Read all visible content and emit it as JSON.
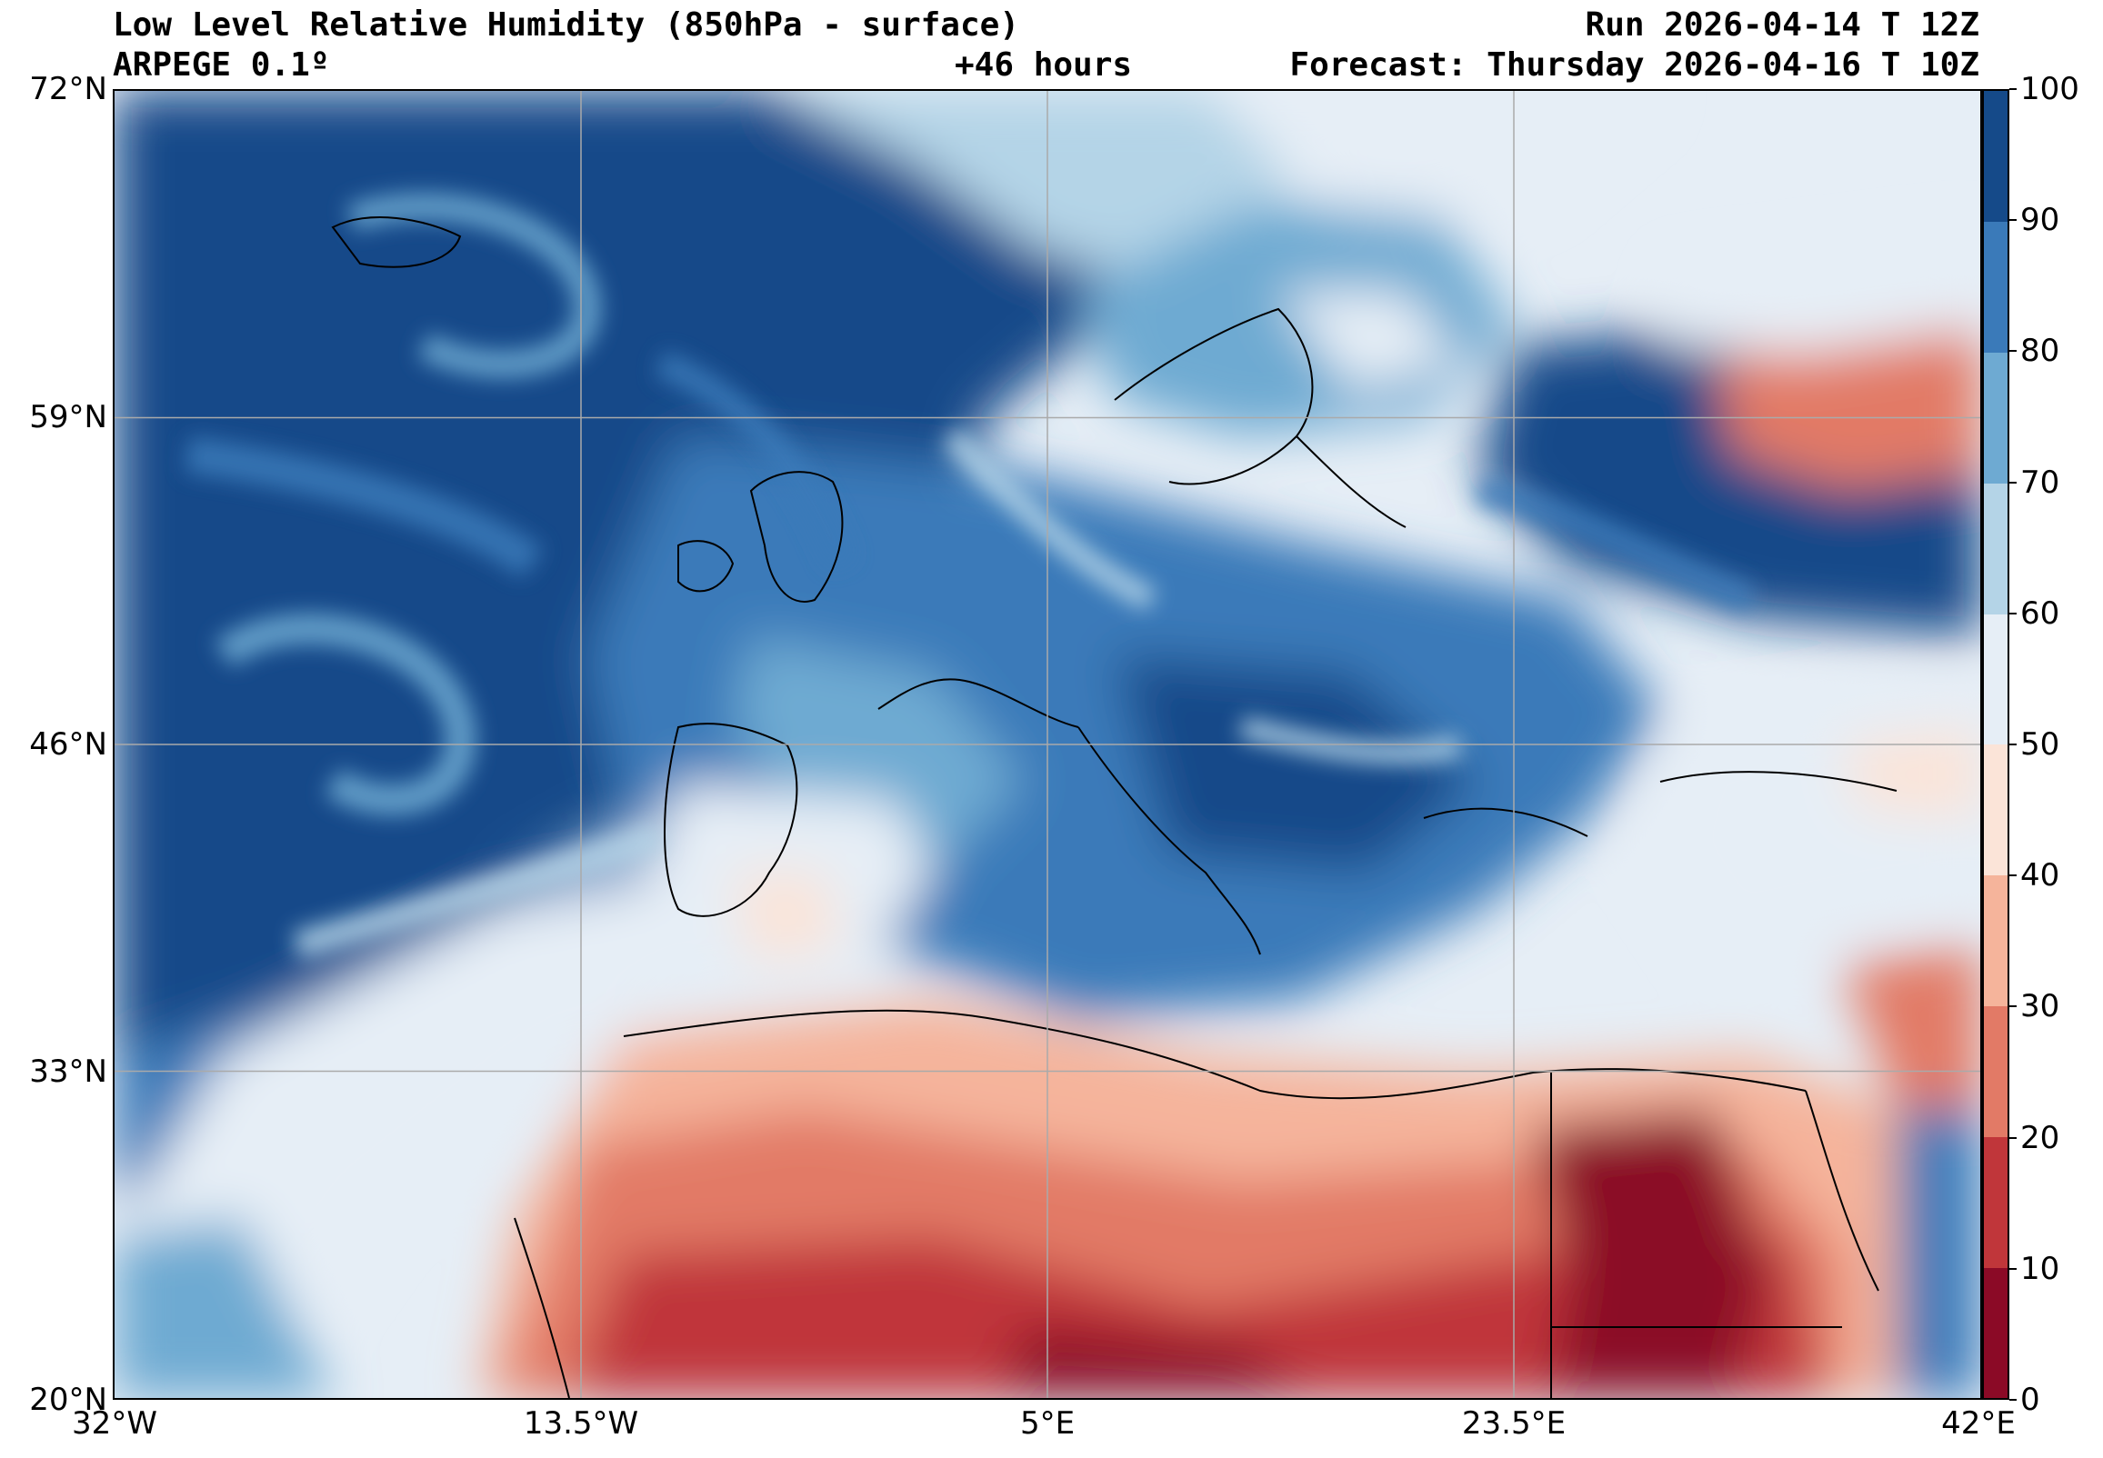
{
  "header": {
    "title": "Low Level Relative Humidity (850hPa - surface)",
    "model": "ARPEGE 0.1º",
    "lead_time": "+46 hours",
    "run": "Run 2026-04-14 T 12Z",
    "forecast": "Forecast: Thursday 2026-04-16 T 10Z"
  },
  "map": {
    "lat_range": [
      20,
      72
    ],
    "lon_range": [
      -32,
      42
    ],
    "lat_ticks": [
      {
        "value": 72,
        "label": "72°N"
      },
      {
        "value": 59,
        "label": "59°N"
      },
      {
        "value": 46,
        "label": "46°N"
      },
      {
        "value": 33,
        "label": "33°N"
      },
      {
        "value": 20,
        "label": "20°N"
      }
    ],
    "lon_ticks": [
      {
        "value": -32,
        "label": "32°W"
      },
      {
        "value": -13.5,
        "label": "13.5°W"
      },
      {
        "value": 5,
        "label": "5°E"
      },
      {
        "value": 23.5,
        "label": "23.5°E"
      },
      {
        "value": 42,
        "label": "42°E"
      }
    ],
    "grid": true
  },
  "colorbar": {
    "levels": [
      0,
      10,
      20,
      30,
      40,
      50,
      60,
      70,
      80,
      90,
      100
    ],
    "labels": [
      "0",
      "10",
      "20",
      "30",
      "40",
      "50",
      "60",
      "70",
      "80",
      "90",
      "100"
    ],
    "colors": [
      "#8b0a26",
      "#c0363a",
      "#e27a66",
      "#f5b49b",
      "#fbe4d8",
      "#e6eef6",
      "#b4d4e7",
      "#6eaad2",
      "#3a7ab9",
      "#154a89"
    ]
  }
}
